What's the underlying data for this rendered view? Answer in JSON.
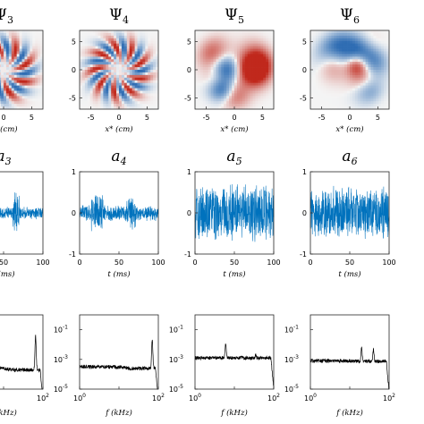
{
  "chart_data": [
    {
      "type": "heatmap",
      "row": "modes",
      "titles": [
        {
          "base": "Ψ",
          "sub": "3"
        },
        {
          "base": "Ψ",
          "sub": "4"
        },
        {
          "base": "Ψ",
          "sub": "5"
        },
        {
          "base": "Ψ",
          "sub": "6"
        }
      ],
      "xlabel": "x* (cm)",
      "xticks": [
        "-5",
        "0",
        "5"
      ],
      "yticks": [
        "5",
        "0",
        "-5"
      ],
      "xlim": [
        -7,
        7
      ],
      "ylim": [
        -7,
        7
      ],
      "colors": {
        "positive": "#c0281c",
        "negative": "#2f6db3",
        "neutral": "#f4f4f4"
      },
      "patterns": [
        {
          "kind": "spiral",
          "arms": 8,
          "phase": 0.3
        },
        {
          "kind": "spiral",
          "arms": 9,
          "phase": 1.1
        },
        {
          "kind": "blobs",
          "seed": 5
        },
        {
          "kind": "blobs",
          "seed": 9
        }
      ]
    },
    {
      "type": "line",
      "row": "coefficients",
      "titles": [
        {
          "base": "a",
          "sub": "3"
        },
        {
          "base": "a",
          "sub": "4"
        },
        {
          "base": "a",
          "sub": "5"
        },
        {
          "base": "a",
          "sub": "6"
        }
      ],
      "xlabel": "t (ms)",
      "xticks": [
        "0",
        "50",
        "100"
      ],
      "yticks": [
        "1",
        "0",
        "-1"
      ],
      "xlim": [
        0,
        100
      ],
      "ylim": [
        -1,
        1
      ],
      "line_color": "#0072bd",
      "series": [
        {
          "values": "amplitude-modulated noise",
          "low_amp": 0.12,
          "high_amp": 0.4,
          "bursts": [
            [
              22,
              30
            ],
            [
              62,
              70
            ]
          ]
        },
        {
          "values": "amplitude-modulated noise",
          "low_amp": 0.15,
          "high_amp": 0.38,
          "bursts": [
            [
              15,
              30
            ],
            [
              60,
              72
            ]
          ]
        },
        {
          "values": "broadband noise",
          "amp": 0.55
        },
        {
          "values": "broadband noise",
          "amp": 0.5
        }
      ]
    },
    {
      "type": "line",
      "row": "spectra",
      "xlabel": "f (kHz)",
      "xscale": "log",
      "yscale": "log",
      "xlim": [
        1,
        100
      ],
      "ylim": [
        1e-05,
        1
      ],
      "xtick_labels": [
        {
          "base": "10",
          "exp": "0"
        },
        {
          "base": "10",
          "exp": "2"
        }
      ],
      "ytick_labels": [
        {
          "base": "10",
          "exp": "-1"
        },
        {
          "base": "10",
          "exp": "-3"
        },
        {
          "base": "10",
          "exp": "-5"
        }
      ],
      "line_color": "#000000",
      "series": [
        {
          "floor_log10": -3.6,
          "peaks": [
            {
              "f": 65,
              "log10": -1.3
            }
          ]
        },
        {
          "floor_log10": -3.5,
          "peaks": [
            {
              "f": 70,
              "log10": -1.6
            }
          ]
        },
        {
          "floor_log10": -2.9,
          "peaks": [
            {
              "f": 6,
              "log10": -2.0
            },
            {
              "f": 35,
              "log10": -2.6
            }
          ]
        },
        {
          "floor_log10": -3.1,
          "peaks": [
            {
              "f": 20,
              "log10": -2.2
            },
            {
              "f": 40,
              "log10": -2.3
            }
          ]
        }
      ]
    }
  ]
}
